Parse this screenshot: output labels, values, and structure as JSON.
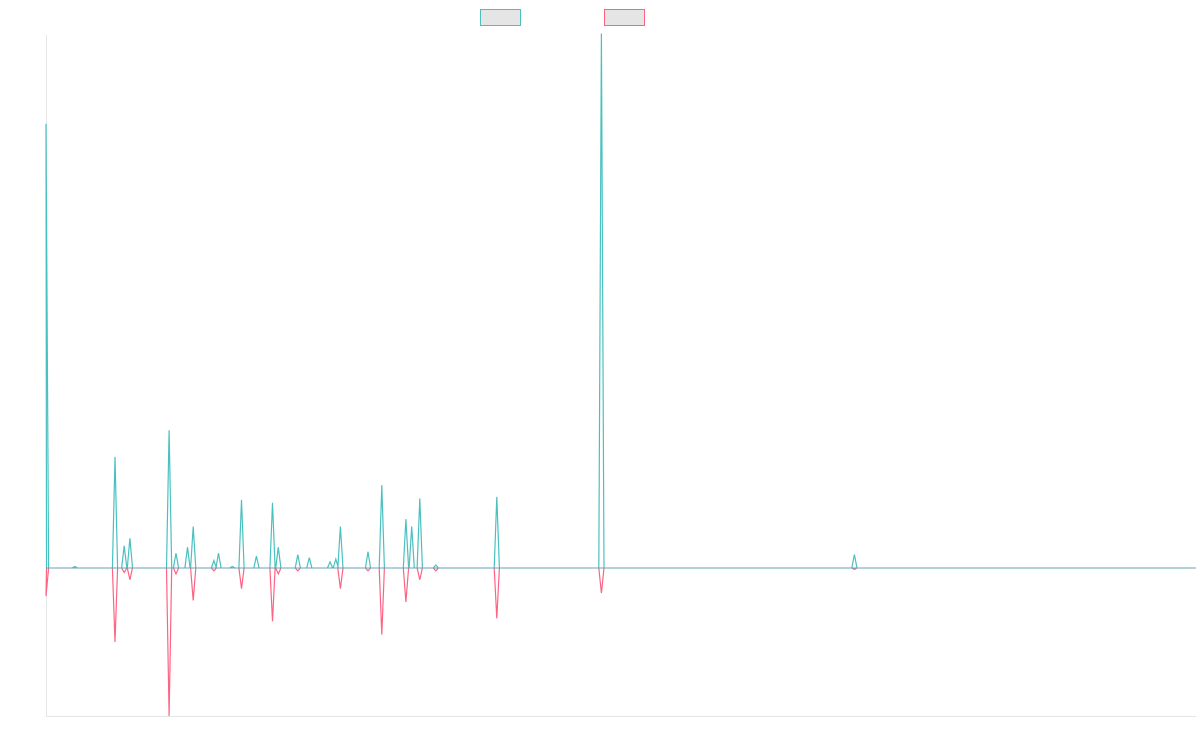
{
  "chart_data": {
    "type": "line",
    "title": "",
    "xlabel": "",
    "ylabel": "",
    "legend_position": "top-center",
    "grid": false,
    "xlim": [
      0,
      100
    ],
    "ylim": [
      -100,
      360
    ],
    "series": [
      {
        "color": "#4bc0c0",
        "fill": "#e5e5e5",
        "direction": "up",
        "points": [
          [
            0.0,
            300
          ],
          [
            2.5,
            1
          ],
          [
            6.0,
            75
          ],
          [
            6.8,
            15
          ],
          [
            7.3,
            20
          ],
          [
            10.7,
            93
          ],
          [
            11.3,
            10
          ],
          [
            12.3,
            14
          ],
          [
            12.8,
            28
          ],
          [
            14.6,
            5
          ],
          [
            15.0,
            10
          ],
          [
            16.2,
            1
          ],
          [
            17.0,
            46
          ],
          [
            18.3,
            8
          ],
          [
            19.7,
            44
          ],
          [
            20.2,
            14
          ],
          [
            21.9,
            9
          ],
          [
            22.9,
            7
          ],
          [
            24.7,
            4
          ],
          [
            25.2,
            6
          ],
          [
            25.6,
            28
          ],
          [
            28.0,
            11
          ],
          [
            29.2,
            56
          ],
          [
            31.3,
            33
          ],
          [
            31.8,
            28
          ],
          [
            32.5,
            47
          ],
          [
            33.9,
            2
          ],
          [
            39.2,
            48
          ],
          [
            48.3,
            361
          ],
          [
            70.3,
            9
          ]
        ]
      },
      {
        "color": "#ff6384",
        "fill": "#e5e5e5",
        "direction": "down",
        "points": [
          [
            0.0,
            -19
          ],
          [
            6.0,
            -50
          ],
          [
            6.8,
            -3
          ],
          [
            7.3,
            -8
          ],
          [
            10.7,
            -100
          ],
          [
            11.3,
            -4
          ],
          [
            12.8,
            -22
          ],
          [
            14.6,
            -2
          ],
          [
            17.0,
            -14
          ],
          [
            19.7,
            -36
          ],
          [
            20.2,
            -4
          ],
          [
            21.9,
            -2
          ],
          [
            25.6,
            -14
          ],
          [
            28.0,
            -2
          ],
          [
            29.2,
            -45
          ],
          [
            31.3,
            -23
          ],
          [
            32.5,
            -8
          ],
          [
            33.9,
            -2
          ],
          [
            39.2,
            -34
          ],
          [
            48.3,
            -17
          ],
          [
            70.3,
            -1
          ]
        ]
      }
    ]
  }
}
